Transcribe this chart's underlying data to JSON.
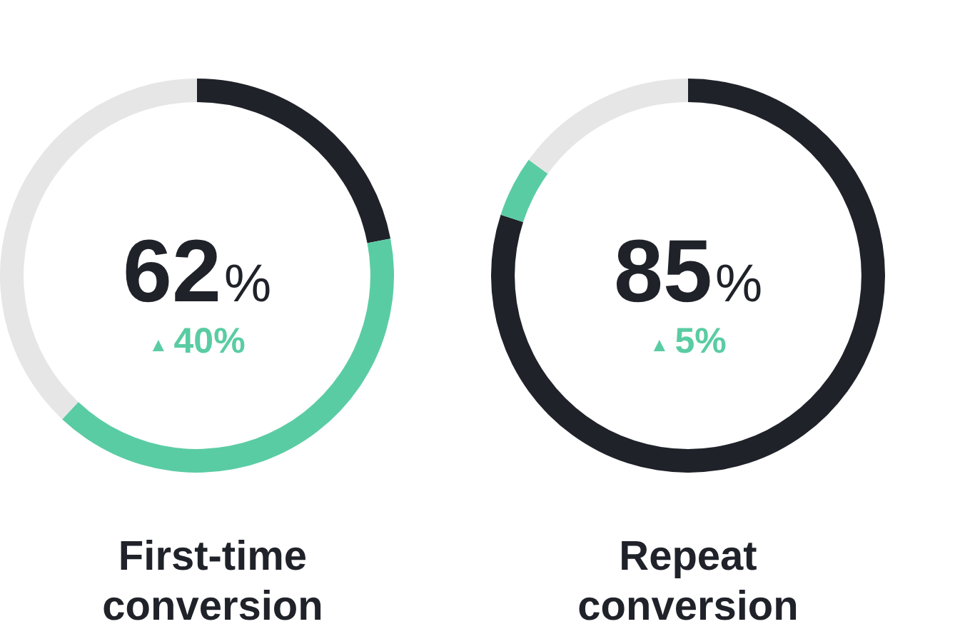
{
  "chart_data": [
    {
      "type": "donut",
      "title": "First-time conversion",
      "categories": [
        null,
        null,
        null
      ],
      "values": [
        22,
        40,
        38
      ],
      "colors": [
        "#1f2229",
        "#5acca4",
        "#e6e6e6"
      ],
      "annotations": [
        "62%",
        "▲40%"
      ]
    },
    {
      "type": "donut",
      "title": "Repeat conversion",
      "categories": [
        null,
        null,
        null
      ],
      "values": [
        80,
        5,
        15
      ],
      "colors": [
        "#1f2229",
        "#5acca4",
        "#e6e6e6"
      ],
      "annotations": [
        "85%",
        "▲5%"
      ]
    }
  ]
}
